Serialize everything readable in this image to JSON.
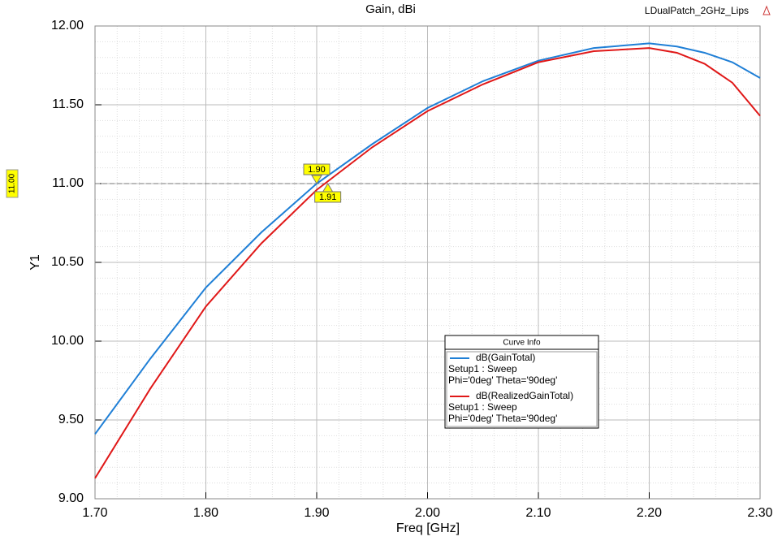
{
  "chart_data": {
    "type": "line",
    "title": "Gain, dBi",
    "project": "LDualPatch_2GHz_Lips",
    "x_label": "Freq [GHz]",
    "y_label": "Y1",
    "x": [
      1.7,
      1.75,
      1.8,
      1.85,
      1.9,
      1.95,
      2.0,
      2.05,
      2.1,
      2.15,
      2.2,
      2.225,
      2.25,
      2.275,
      2.3
    ],
    "series": [
      {
        "name": "dB(GainTotal)",
        "color": "#1f7fd6",
        "details": [
          "Setup1 : Sweep",
          "Phi='0deg' Theta='90deg'"
        ],
        "values": [
          9.41,
          9.89,
          10.34,
          10.69,
          11.0,
          11.25,
          11.48,
          11.65,
          11.78,
          11.86,
          11.89,
          11.87,
          11.83,
          11.77,
          11.67
        ]
      },
      {
        "name": "dB(RealizedGainTotal)",
        "color": "#e01818",
        "details": [
          "Setup1 : Sweep",
          "Phi='0deg' Theta='90deg'"
        ],
        "values": [
          9.13,
          9.7,
          10.22,
          10.62,
          10.96,
          11.23,
          11.46,
          11.63,
          11.77,
          11.84,
          11.86,
          11.83,
          11.76,
          11.64,
          11.43
        ]
      }
    ],
    "legend_title": "Curve Info",
    "xlim": [
      1.7,
      2.3
    ],
    "ylim": [
      9.0,
      12.0
    ],
    "xticks": [
      {
        "value": 1.7,
        "label": "1.70"
      },
      {
        "value": 1.8,
        "label": "1.80"
      },
      {
        "value": 1.9,
        "label": "1.90"
      },
      {
        "value": 2.0,
        "label": "2.00"
      },
      {
        "value": 2.1,
        "label": "2.10"
      },
      {
        "value": 2.2,
        "label": "2.20"
      },
      {
        "value": 2.3,
        "label": "2.30"
      }
    ],
    "yticks": [
      {
        "value": 9,
        "label": "9.00"
      },
      {
        "value": 9.5,
        "label": "9.50"
      },
      {
        "value": 10,
        "label": "10.00"
      },
      {
        "value": 10.5,
        "label": "10.50"
      },
      {
        "value": 11,
        "label": "11.00"
      },
      {
        "value": 11.5,
        "label": "11.50"
      },
      {
        "value": 12,
        "label": "12.00"
      }
    ],
    "grid": true,
    "hline": {
      "value": 11,
      "label": "11.00"
    },
    "markers": [
      {
        "x": 1.9,
        "label": "1.90",
        "y": 11.0,
        "series": 0
      },
      {
        "x": 1.91,
        "label": "1.91",
        "y": 11.0,
        "series": 1
      }
    ]
  }
}
